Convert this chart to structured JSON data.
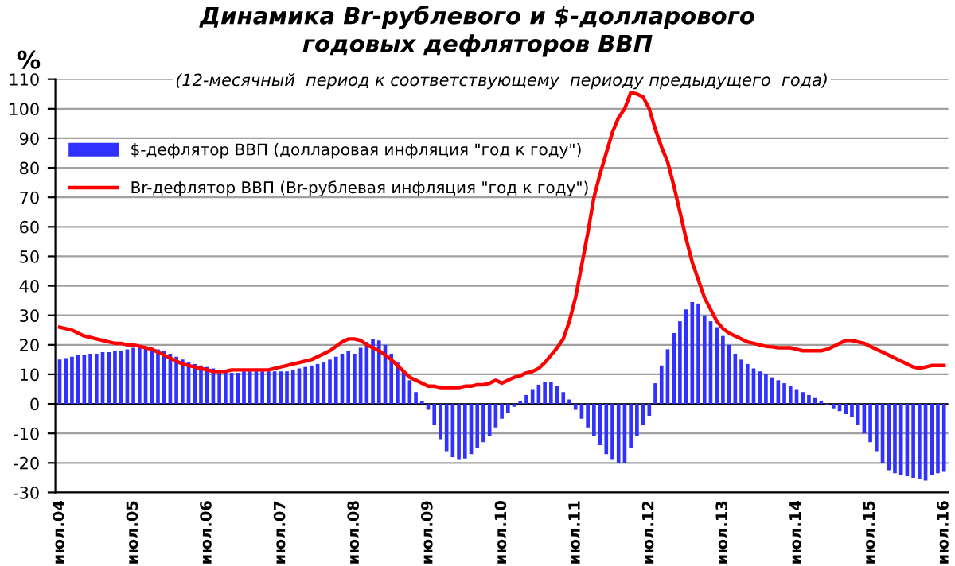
{
  "chart_data": {
    "type": "bar",
    "title": "Динамика Br-рублевого и $-долларового\nгодовых дефляторов ВВП",
    "subtitle": "(12-месячный  период к соответствующему  периоду предыдущего  года)",
    "ylabel": "%",
    "categories": [
      "июл.04",
      null,
      null,
      null,
      null,
      null,
      null,
      null,
      null,
      null,
      null,
      null,
      "июл.05",
      null,
      null,
      null,
      null,
      null,
      null,
      null,
      null,
      null,
      null,
      null,
      "июл.06",
      null,
      null,
      null,
      null,
      null,
      null,
      null,
      null,
      null,
      null,
      null,
      "июл.07",
      null,
      null,
      null,
      null,
      null,
      null,
      null,
      null,
      null,
      null,
      null,
      "июл.08",
      null,
      null,
      null,
      null,
      null,
      null,
      null,
      null,
      null,
      null,
      null,
      "июл.09",
      null,
      null,
      null,
      null,
      null,
      null,
      null,
      null,
      null,
      null,
      null,
      "июл.10",
      null,
      null,
      null,
      null,
      null,
      null,
      null,
      null,
      null,
      null,
      null,
      "июл.11",
      null,
      null,
      null,
      null,
      null,
      null,
      null,
      null,
      null,
      null,
      null,
      "июл.12",
      null,
      null,
      null,
      null,
      null,
      null,
      null,
      null,
      null,
      null,
      null,
      "июл.13",
      null,
      null,
      null,
      null,
      null,
      null,
      null,
      null,
      null,
      null,
      null,
      "июл.14",
      null,
      null,
      null,
      null,
      null,
      null,
      null,
      null,
      null,
      null,
      null,
      "июл.15",
      null,
      null,
      null,
      null,
      null,
      null,
      null,
      null,
      null,
      null,
      null,
      "июл.16"
    ],
    "series": [
      {
        "name": "$-дефлятор ВВП (долларовая инфляция \"год к году\")",
        "color": "#3030ff",
        "values": [
          15,
          15.5,
          16,
          16.5,
          16.5,
          17,
          17,
          17.5,
          17.5,
          18,
          18,
          18.5,
          19,
          19,
          19,
          19,
          18.5,
          18,
          17,
          16,
          15,
          14,
          13.5,
          13,
          12.5,
          12,
          11.5,
          11,
          10.5,
          10.5,
          11,
          11,
          11,
          11,
          11,
          11,
          11,
          11,
          11.5,
          12,
          12.5,
          13,
          13.5,
          14,
          15,
          16,
          17,
          18,
          17,
          19,
          21,
          22,
          21.5,
          20,
          17,
          14,
          11,
          8,
          4,
          1,
          -2,
          -7,
          -12,
          -16,
          -18,
          -19,
          -18.5,
          -17,
          -15,
          -13,
          -11,
          -8,
          -5,
          -3,
          -1,
          1,
          3,
          5,
          6.5,
          7.5,
          7.5,
          6,
          4,
          1.5,
          -2,
          -5,
          -8,
          -11,
          -14,
          -17,
          -19,
          -20,
          -20,
          -15,
          -11,
          -7,
          -4,
          7,
          13,
          18.5,
          24,
          28,
          32,
          34.5,
          34,
          30,
          28,
          26,
          23,
          20,
          17,
          15,
          13.5,
          12,
          11,
          10,
          9,
          8,
          7,
          6,
          5,
          4,
          3,
          2,
          1,
          -0.5,
          -1.5,
          -2.5,
          -3.5,
          -4.5,
          -7,
          -10,
          -13,
          -16,
          -20,
          -22.5,
          -23.5,
          -24,
          -24.5,
          -25,
          -25.5,
          -26,
          -24,
          -23.5,
          -23
        ]
      },
      {
        "name": "Br-дефлятор ВВП (Br-рублевая инфляция \"год к году\")",
        "type": "line",
        "color": "#ff0000",
        "values": [
          26,
          25.5,
          25,
          24,
          23,
          22.5,
          22,
          21.5,
          21,
          20.5,
          20.5,
          20,
          20,
          19.5,
          19,
          18.5,
          17.5,
          16.5,
          15.5,
          14.5,
          13.5,
          13,
          12.5,
          12,
          11.5,
          11,
          11,
          11,
          11.5,
          11.5,
          11.5,
          11.5,
          11.5,
          11.5,
          11.5,
          12,
          12.5,
          13,
          13.5,
          14,
          14.5,
          15,
          16,
          17,
          18,
          19.5,
          21,
          22,
          22,
          21.5,
          20,
          19,
          18,
          16.5,
          15,
          13,
          11,
          9,
          8,
          7,
          6,
          6,
          5.5,
          5.5,
          5.5,
          5.5,
          6,
          6,
          6.5,
          6.5,
          7,
          8,
          7,
          8,
          9,
          9.5,
          10.5,
          11,
          12,
          14,
          16.5,
          19,
          22,
          28,
          36,
          47,
          58,
          70,
          78,
          85,
          92,
          97,
          100,
          105.5,
          105,
          104,
          100,
          93,
          87,
          82,
          74,
          65,
          56,
          48,
          42,
          36,
          32,
          28,
          25.5,
          24,
          23,
          22,
          21,
          20.5,
          20,
          19.5,
          19.3,
          19,
          19,
          19,
          18.5,
          18,
          18,
          18,
          18,
          18.5,
          19.5,
          20.5,
          21.5,
          21.5,
          21,
          20.5,
          19.5,
          18.5,
          17.5,
          16.5,
          15.5,
          14.5,
          13.5,
          12.5,
          12,
          12.5,
          13,
          13,
          13
        ]
      }
    ],
    "ylim": [
      -30,
      110
    ],
    "yticks": [
      -30,
      -20,
      -10,
      0,
      10,
      20,
      30,
      40,
      50,
      60,
      70,
      80,
      90,
      100,
      110
    ],
    "grid": "y",
    "legend": "top left"
  }
}
